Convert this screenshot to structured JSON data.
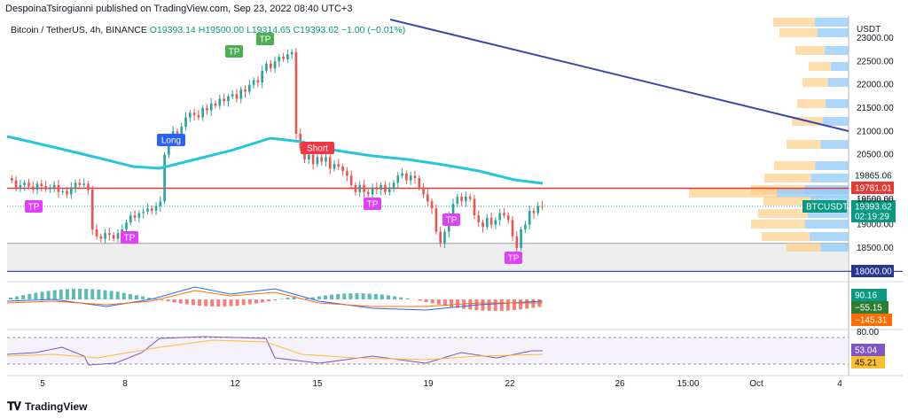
{
  "header": {
    "caption": "DespoinaTsirogianni published on TradingView.com, Sep 23, 2022 08:40 UTC+3",
    "symbol": "Bitcoin / TetherUS, 4h, BINANCE",
    "open": "O19393.14",
    "high": "H19500.00",
    "low": "L19314.65",
    "close": "C19393.62",
    "change": "−1.00 (−0.01%)"
  },
  "footer": {
    "brand": "TradingView",
    "logo": "tradingview-logo-icon"
  },
  "colors": {
    "up": "#26a69a",
    "down": "#ef5350",
    "ema": "#26c6da",
    "trend": "#3949ab",
    "resistance": "#e53935",
    "support": "#283593",
    "tp": "#4caf50",
    "tp_purple": "#e040fb",
    "long": "#2962ff",
    "short": "#f23645"
  },
  "chart_data": [
    {
      "type": "candlestick",
      "unit": "USDT",
      "y_ticks": [
        18500,
        19000,
        19500,
        20000,
        20500,
        21000,
        21500,
        22000,
        22500,
        23000
      ],
      "x_ticks": [
        "5",
        "8",
        "12",
        "15",
        "19",
        "22",
        "26",
        "15:00",
        "Oct",
        "4"
      ],
      "y_axis_top_label": "23000.00",
      "price_labels": [
        {
          "value": "19865.06",
          "style": "plain"
        },
        {
          "value": "19781.01",
          "style": "red"
        },
        {
          "value": "BTCUSDT",
          "style": "symbol"
        },
        {
          "value": "19393.62",
          "style": "current"
        },
        {
          "value": "02:19:29",
          "style": "countdown"
        },
        {
          "value": "18000.00",
          "style": "navy"
        },
        {
          "value": "19500.00",
          "style": "hidden"
        }
      ],
      "levels": {
        "resistance": 19781.01,
        "support": 18000.0,
        "ema_end": 19865.06,
        "last": 19393.62,
        "zone_top": 18600,
        "zone_bottom": 18000
      },
      "markers": [
        {
          "label": "TP",
          "style": "green"
        },
        {
          "label": "TP",
          "style": "green"
        },
        {
          "label": "Long",
          "style": "blue"
        },
        {
          "label": "Short",
          "style": "red"
        },
        {
          "label": "TP",
          "style": "purple"
        },
        {
          "label": "TP",
          "style": "purple"
        },
        {
          "label": "TP",
          "style": "purple"
        },
        {
          "label": "TP",
          "style": "purple"
        },
        {
          "label": "TP",
          "style": "purple"
        }
      ],
      "closes": [
        19950,
        19800,
        19850,
        19900,
        19820,
        19750,
        19880,
        19830,
        19760,
        19800,
        19850,
        19700,
        19720,
        19650,
        19800,
        19900,
        19850,
        19880,
        19750,
        18900,
        18750,
        18700,
        18820,
        18780,
        18700,
        18820,
        18900,
        19050,
        19200,
        19150,
        19250,
        19280,
        19350,
        19300,
        19400,
        19500,
        20500,
        20800,
        21000,
        20950,
        21100,
        21300,
        21400,
        21350,
        21300,
        21500,
        21450,
        21600,
        21550,
        21700,
        21650,
        21750,
        21800,
        21700,
        21900,
        21850,
        22000,
        22100,
        22050,
        22300,
        22450,
        22350,
        22500,
        22600,
        22550,
        22650,
        22700,
        20950,
        20650,
        20400,
        20500,
        20300,
        20450,
        20350,
        20450,
        20200,
        20300,
        20250,
        20150,
        20050,
        19850,
        19700,
        19850,
        19700,
        19650,
        19800,
        19750,
        19850,
        19700,
        19800,
        19900,
        20050,
        20100,
        19950,
        20050,
        20000,
        19800,
        19650,
        19500,
        19350,
        18850,
        18600,
        18850,
        19200,
        19450,
        19600,
        19500,
        19600,
        19550,
        19200,
        19050,
        18950,
        19150,
        19000,
        19100,
        19250,
        19200,
        19100,
        18750,
        18500,
        18900,
        19000,
        19300,
        19250,
        19400,
        19393.62
      ],
      "oscillator_macd": {
        "labels": [
          "90.16",
          "−55.15",
          "−145.31"
        ]
      },
      "oscillator_stoch": {
        "levels": [
          80.0,
          20.0
        ],
        "labels": [
          "80.00",
          "53.04",
          "45.21"
        ]
      },
      "volume_profile": "horizontal-bars"
    }
  ]
}
